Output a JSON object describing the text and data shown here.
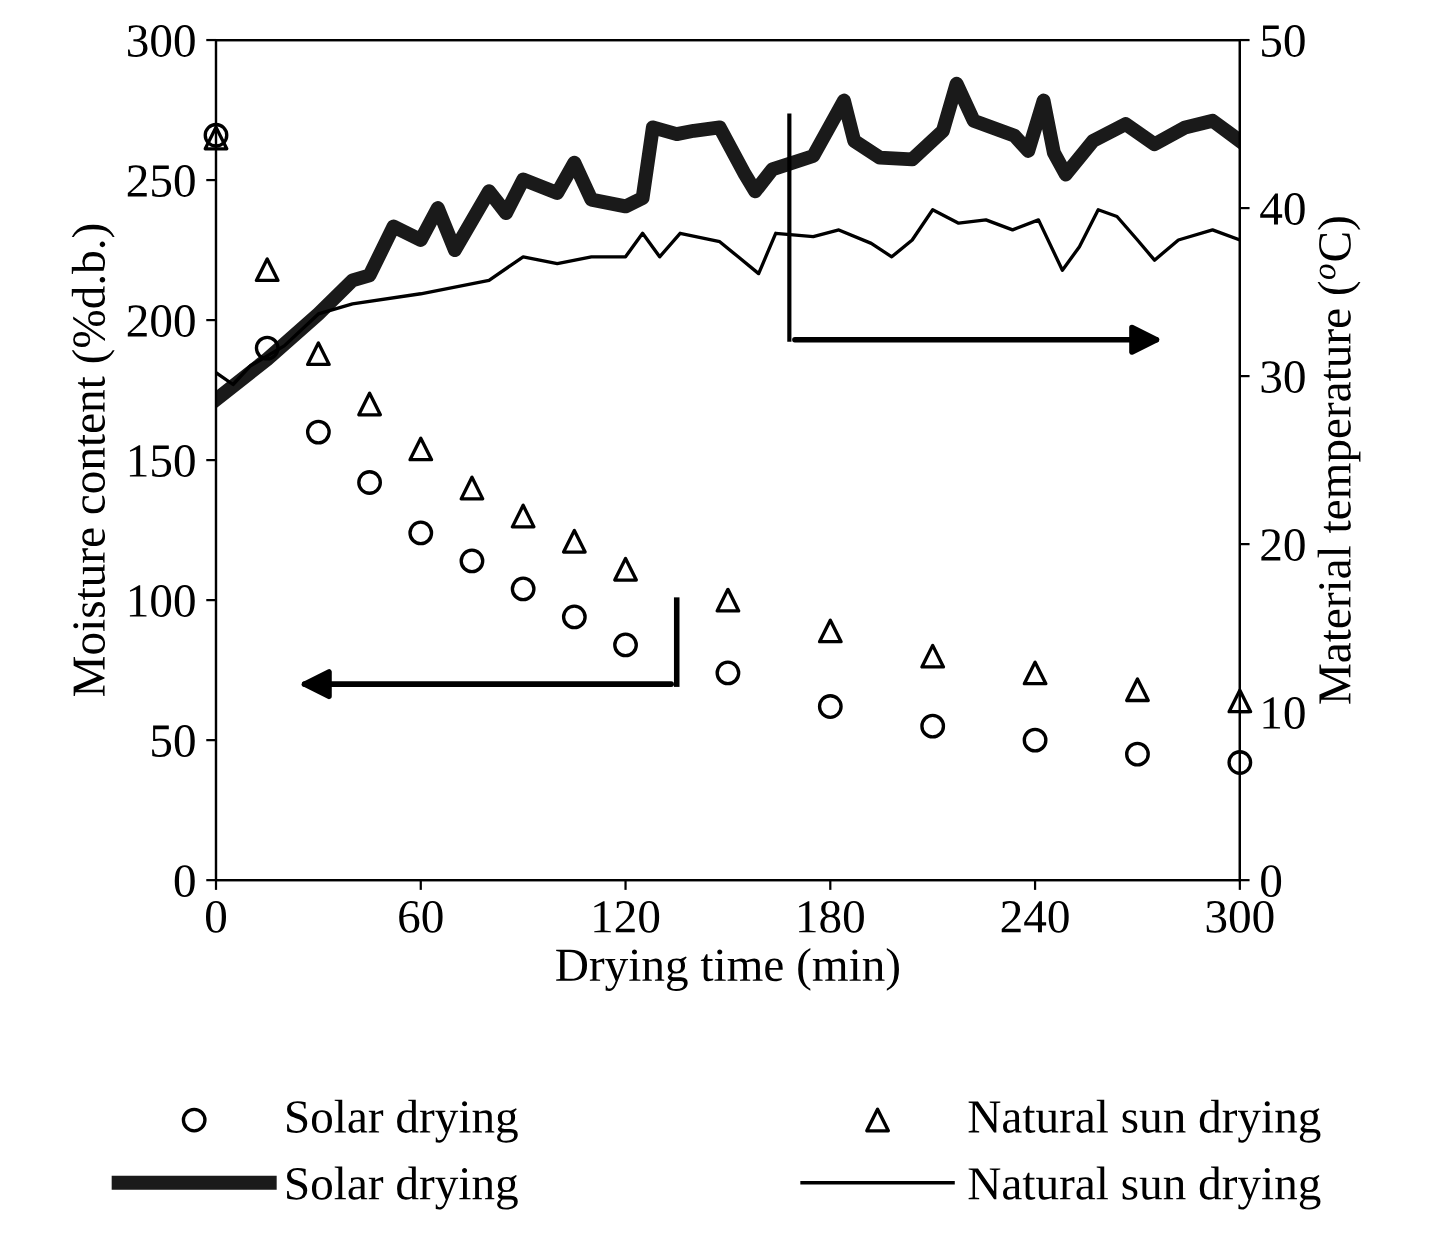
{
  "chart_data": {
    "type": "scatter",
    "xlabel": "Drying time (min)",
    "ylabel": "Moisture content (%d.b.)",
    "y2label": "Material temperature ($^{o}$C)",
    "xlim": [
      0,
      300
    ],
    "xticks": [
      0,
      60,
      120,
      180,
      240,
      300
    ],
    "ylim": [
      0,
      300
    ],
    "yticks": [
      0,
      50,
      100,
      150,
      200,
      250,
      300
    ],
    "y2lim": [
      0,
      50
    ],
    "y2ticks": [
      0,
      10,
      20,
      30,
      40,
      50
    ],
    "grid": false,
    "legend": "bottom",
    "series": [
      {
        "name": "Solar drying",
        "marker": "circle",
        "color": "#000000",
        "x": [
          0,
          15,
          30,
          45,
          60,
          75,
          90,
          105,
          120,
          150,
          180,
          210,
          240,
          270,
          300
        ],
        "values": [
          266,
          190,
          160,
          142,
          124,
          114,
          104,
          94,
          84,
          74,
          62,
          55,
          50,
          45,
          42
        ]
      },
      {
        "name": "Natural sun drying",
        "marker": "triangle",
        "color": "#000000",
        "x": [
          0,
          15,
          30,
          45,
          60,
          75,
          90,
          105,
          120,
          150,
          180,
          210,
          240,
          270,
          300
        ],
        "values": [
          265,
          218,
          188,
          170,
          154,
          140,
          130,
          121,
          111,
          100,
          89,
          80,
          74,
          68,
          64
        ]
      },
      {
        "name": "Solar drying",
        "type": "line",
        "axis": "y2",
        "color": "#1a1a1a",
        "x": [
          0,
          15,
          30,
          40,
          45,
          52,
          60,
          65,
          70,
          80,
          85,
          90,
          100,
          105,
          110,
          120,
          125,
          128,
          135,
          140,
          147.6,
          155,
          158,
          163,
          175,
          184,
          187,
          194.5,
          204,
          213,
          217,
          222,
          234,
          238,
          242.5,
          245.5,
          249,
          257,
          266.5,
          275,
          284,
          292,
          300
        ],
        "values": [
          28.6,
          31,
          33.7,
          35.7,
          36,
          38.9,
          38.1,
          40,
          37.5,
          41,
          39.7,
          41.7,
          40.9,
          42.7,
          40.5,
          40.1,
          40.6,
          44.8,
          44.4,
          44.6,
          44.8,
          42,
          41,
          42.3,
          43.1,
          46.4,
          44,
          43,
          42.9,
          44.6,
          47.4,
          45.2,
          44.3,
          43.4,
          46.4,
          43.3,
          42,
          44,
          45,
          43.8,
          44.8,
          45.2,
          44
        ]
      },
      {
        "name": "Natural sun drying",
        "type": "line",
        "axis": "y2",
        "color": "#000000",
        "x": [
          0,
          5,
          10,
          20,
          30,
          40,
          60,
          80,
          90,
          100,
          110,
          120,
          125,
          130,
          136,
          147.6,
          153,
          159,
          164,
          175,
          182.5,
          192,
          198,
          204,
          210,
          217.6,
          225.6,
          233.4,
          241,
          248,
          253,
          258.5,
          264,
          270,
          275,
          282,
          292,
          300
        ],
        "values": [
          30.2,
          29.5,
          30.6,
          31.8,
          33.7,
          34.3,
          34.9,
          35.7,
          37.1,
          36.7,
          37.1,
          37.1,
          38.5,
          37.1,
          38.5,
          38,
          37.1,
          36.1,
          38.5,
          38.3,
          38.7,
          37.9,
          37.1,
          38.1,
          39.9,
          39.1,
          39.3,
          38.7,
          39.3,
          36.3,
          37.7,
          39.9,
          39.5,
          38.1,
          36.9,
          38.1,
          38.7,
          38.1
        ]
      }
    ]
  }
}
